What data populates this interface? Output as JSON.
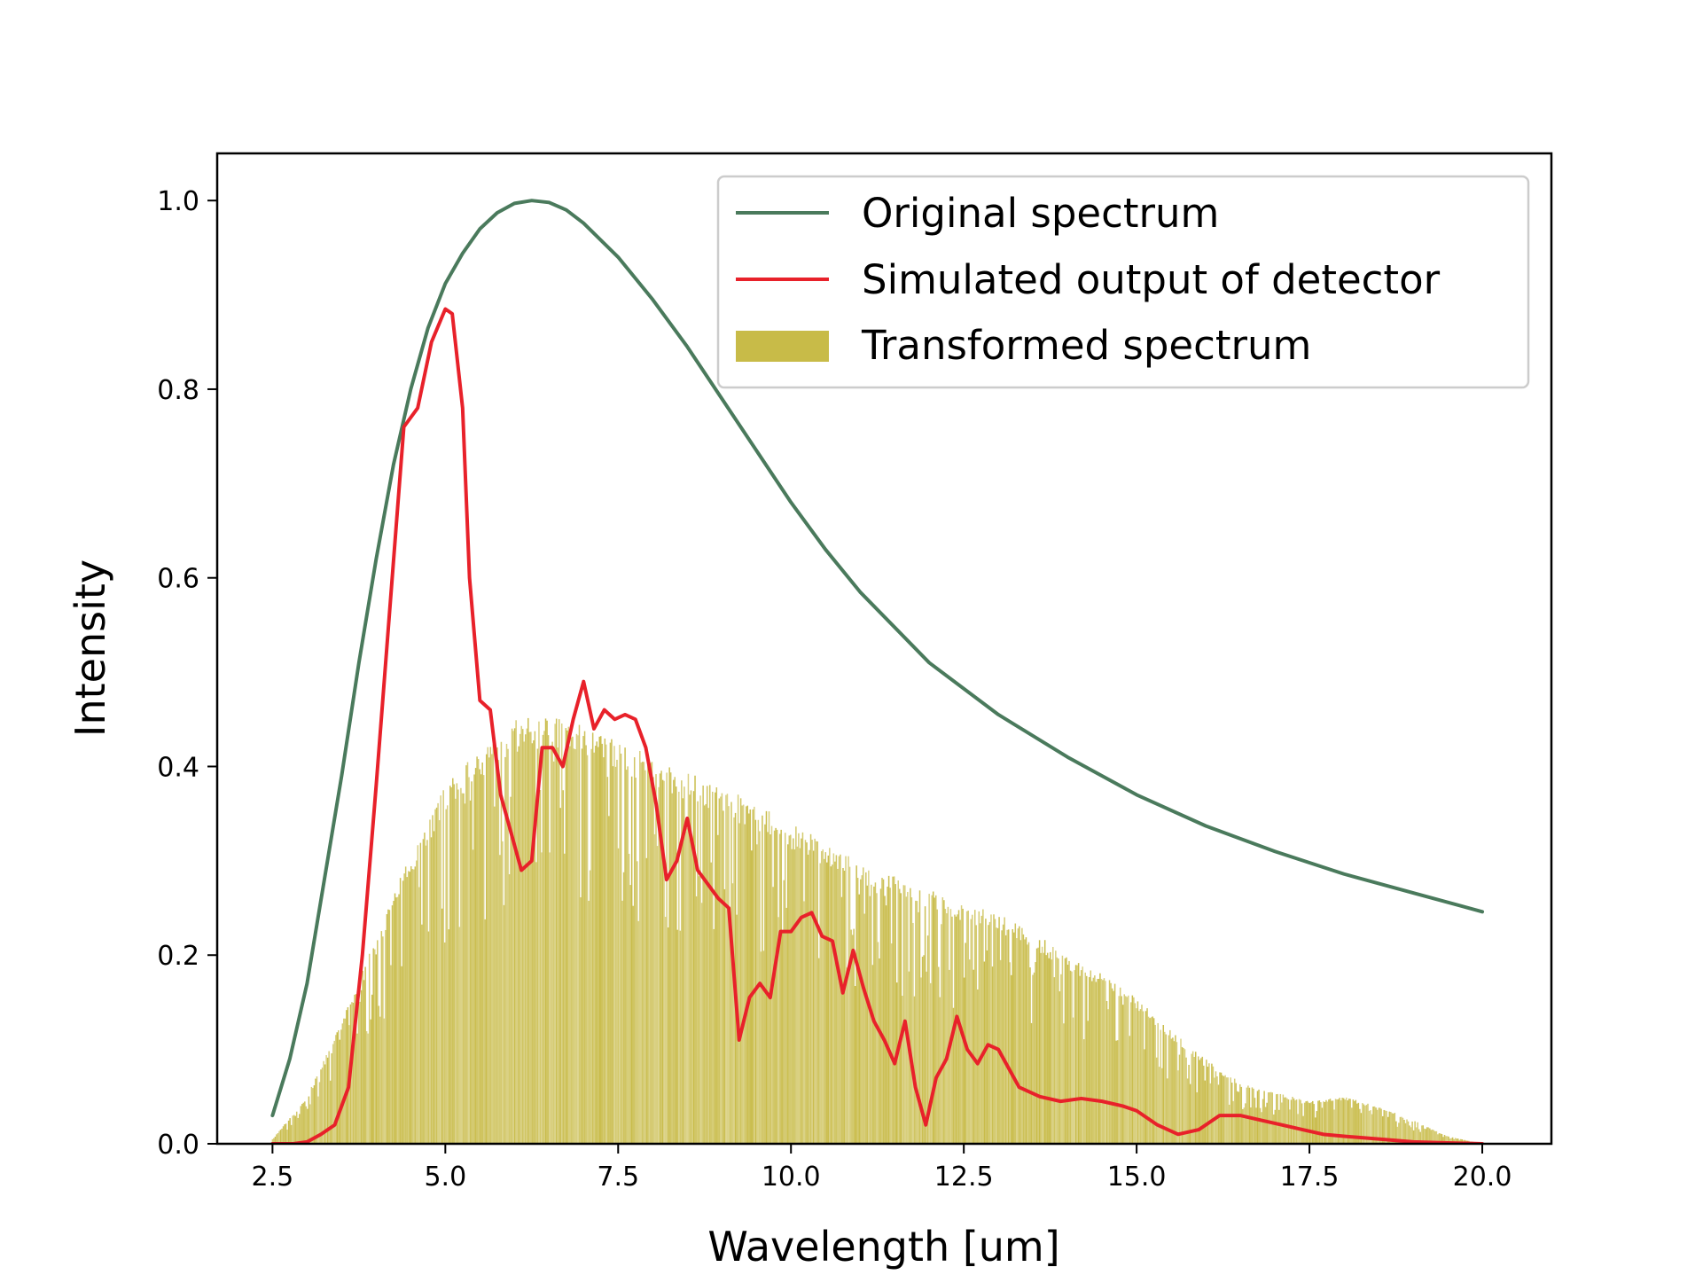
{
  "chart_data": {
    "type": "line",
    "xlabel": "Wavelength [um]",
    "ylabel": "Intensity",
    "xlim": [
      1.7,
      21.0
    ],
    "ylim": [
      0.0,
      1.05
    ],
    "xticks": [
      2.5,
      5.0,
      7.5,
      10.0,
      12.5,
      15.0,
      17.5,
      20.0
    ],
    "xtick_labels": [
      "2.5",
      "5.0",
      "7.5",
      "10.0",
      "12.5",
      "15.0",
      "17.5",
      "20.0"
    ],
    "yticks": [
      0.0,
      0.2,
      0.4,
      0.6,
      0.8,
      1.0
    ],
    "ytick_labels": [
      "0.0",
      "0.2",
      "0.4",
      "0.6",
      "0.8",
      "1.0"
    ],
    "grid": false,
    "legend_position": "top-right",
    "series": [
      {
        "name": "Original spectrum",
        "kind": "line",
        "color": "#4a7a5c",
        "x": [
          2.5,
          2.75,
          3.0,
          3.25,
          3.5,
          3.75,
          4.0,
          4.25,
          4.5,
          4.75,
          5.0,
          5.25,
          5.5,
          5.75,
          6.0,
          6.25,
          6.5,
          6.75,
          7.0,
          7.5,
          8.0,
          8.5,
          9.0,
          9.5,
          10.0,
          10.5,
          11.0,
          12.0,
          13.0,
          14.0,
          15.0,
          16.0,
          17.0,
          18.0,
          19.0,
          20.0
        ],
        "y": [
          0.03,
          0.09,
          0.17,
          0.28,
          0.39,
          0.51,
          0.62,
          0.72,
          0.8,
          0.865,
          0.912,
          0.944,
          0.97,
          0.987,
          0.997,
          1.0,
          0.998,
          0.99,
          0.976,
          0.94,
          0.895,
          0.845,
          0.79,
          0.735,
          0.68,
          0.63,
          0.585,
          0.51,
          0.455,
          0.41,
          0.37,
          0.337,
          0.31,
          0.286,
          0.266,
          0.246
        ]
      },
      {
        "name": "Simulated output of detector",
        "kind": "line",
        "color": "#e8212a",
        "x": [
          2.5,
          2.8,
          3.0,
          3.2,
          3.4,
          3.6,
          3.8,
          4.0,
          4.2,
          4.4,
          4.6,
          4.8,
          5.0,
          5.1,
          5.25,
          5.35,
          5.5,
          5.65,
          5.8,
          5.95,
          6.1,
          6.25,
          6.4,
          6.55,
          6.7,
          6.85,
          7.0,
          7.15,
          7.3,
          7.45,
          7.6,
          7.75,
          7.9,
          8.05,
          8.2,
          8.35,
          8.5,
          8.65,
          8.8,
          8.95,
          9.1,
          9.25,
          9.4,
          9.55,
          9.7,
          9.85,
          10.0,
          10.15,
          10.3,
          10.45,
          10.6,
          10.75,
          10.9,
          11.05,
          11.2,
          11.35,
          11.5,
          11.65,
          11.8,
          11.95,
          12.1,
          12.25,
          12.4,
          12.55,
          12.7,
          12.85,
          13.0,
          13.3,
          13.6,
          13.9,
          14.2,
          14.5,
          14.8,
          15.0,
          15.3,
          15.6,
          15.9,
          16.2,
          16.5,
          16.8,
          17.1,
          17.4,
          17.7,
          18.0,
          18.5,
          19.0,
          19.5,
          20.0
        ],
        "y": [
          0.0,
          0.0,
          0.002,
          0.01,
          0.02,
          0.06,
          0.2,
          0.38,
          0.57,
          0.76,
          0.78,
          0.85,
          0.885,
          0.88,
          0.78,
          0.6,
          0.47,
          0.46,
          0.37,
          0.33,
          0.29,
          0.3,
          0.42,
          0.42,
          0.4,
          0.45,
          0.49,
          0.44,
          0.46,
          0.45,
          0.455,
          0.45,
          0.42,
          0.36,
          0.28,
          0.3,
          0.345,
          0.29,
          0.275,
          0.26,
          0.25,
          0.11,
          0.155,
          0.17,
          0.155,
          0.225,
          0.225,
          0.24,
          0.245,
          0.22,
          0.215,
          0.16,
          0.205,
          0.165,
          0.13,
          0.11,
          0.085,
          0.13,
          0.06,
          0.02,
          0.07,
          0.09,
          0.135,
          0.1,
          0.085,
          0.105,
          0.1,
          0.06,
          0.05,
          0.045,
          0.048,
          0.045,
          0.04,
          0.035,
          0.02,
          0.01,
          0.015,
          0.03,
          0.03,
          0.025,
          0.02,
          0.015,
          0.01,
          0.008,
          0.005,
          0.002,
          0.001,
          0.0
        ]
      },
      {
        "name": "Transformed spectrum",
        "kind": "bar-envelope",
        "color": "#c8bb48",
        "x": [
          2.5,
          3.0,
          3.5,
          4.0,
          4.5,
          5.0,
          5.5,
          6.0,
          6.5,
          7.0,
          7.5,
          8.0,
          8.5,
          9.0,
          9.5,
          10.0,
          10.5,
          11.0,
          11.5,
          12.0,
          12.5,
          13.0,
          13.5,
          14.0,
          14.5,
          15.0,
          15.5,
          16.0,
          16.5,
          17.0,
          17.5,
          18.0,
          18.5,
          19.0,
          19.5,
          20.0
        ],
        "y": [
          0.005,
          0.05,
          0.13,
          0.22,
          0.31,
          0.38,
          0.42,
          0.45,
          0.455,
          0.45,
          0.43,
          0.41,
          0.395,
          0.38,
          0.36,
          0.34,
          0.32,
          0.3,
          0.285,
          0.27,
          0.255,
          0.245,
          0.225,
          0.2,
          0.18,
          0.155,
          0.12,
          0.09,
          0.065,
          0.055,
          0.045,
          0.05,
          0.04,
          0.025,
          0.008,
          0.0
        ]
      }
    ]
  }
}
